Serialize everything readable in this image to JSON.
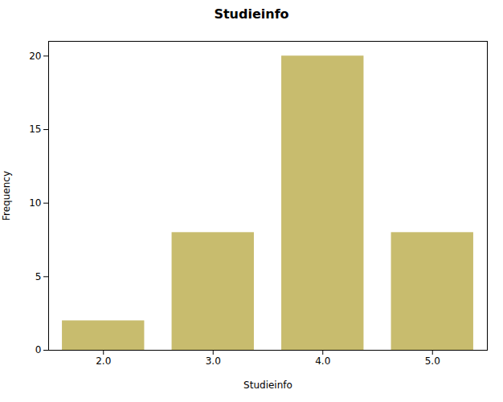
{
  "chart_data": {
    "type": "bar",
    "title": "Studieinfo",
    "xlabel": "Studieinfo",
    "ylabel": "Frequency",
    "x": [
      2,
      3,
      4,
      5
    ],
    "values": [
      2,
      8,
      20,
      8
    ],
    "color": "#C8BC6E",
    "xlim": [
      1.5,
      5.5
    ],
    "xticks": [
      2,
      3,
      4,
      5
    ],
    "ylim": [
      0,
      21
    ],
    "yticks": [
      0,
      5,
      10,
      15,
      20
    ],
    "grid": false
  }
}
